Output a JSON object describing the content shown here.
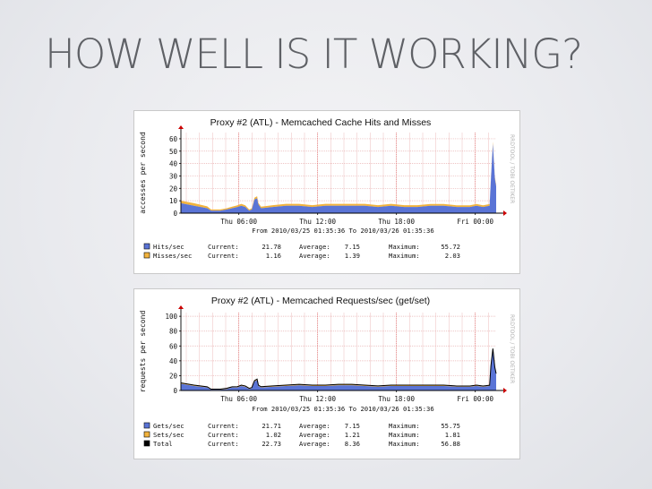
{
  "slide": {
    "title": "HOW WELL IS IT WORKING?"
  },
  "panels": [
    {
      "watermark": "RRDTOOL / TOBI OETIKER",
      "legend": [
        {
          "label": "Hits/sec",
          "color": "#5a74d6",
          "current": "21.78",
          "average": "7.15",
          "maximum": "55.72"
        },
        {
          "label": "Misses/sec",
          "color": "#f2b33d",
          "current": "1.16",
          "average": "1.39",
          "maximum": "2.03"
        }
      ],
      "labels": {
        "current": "Current:",
        "average": "Average:",
        "maximum": "Maximum:"
      }
    },
    {
      "watermark": "RRDTOOL / TOBI OETIKER",
      "legend": [
        {
          "label": "Gets/sec",
          "color": "#5a74d6",
          "current": "21.71",
          "average": "7.15",
          "maximum": "55.75"
        },
        {
          "label": "Sets/sec",
          "color": "#f2b33d",
          "current": "1.02",
          "average": "1.21",
          "maximum": "1.81"
        },
        {
          "label": "Total",
          "color": "#000000",
          "current": "22.73",
          "average": "8.36",
          "maximum": "56.88"
        }
      ],
      "labels": {
        "current": "Current:",
        "average": "Average:",
        "maximum": "Maximum:"
      }
    }
  ],
  "chart_data": [
    {
      "type": "area",
      "title": "Proxy #2 (ATL) - Memcached Cache Hits and Misses",
      "ylabel": "accesses per second",
      "subtitle": "From 2010/03/25 01:35:36 To 2010/03/26 01:35:36",
      "ylim": [
        0,
        65
      ],
      "yticks": [
        0,
        10,
        20,
        30,
        40,
        50,
        60
      ],
      "xlim": [
        0,
        24
      ],
      "xticks": [
        {
          "x": 4.41,
          "label": "Thu 06:00"
        },
        {
          "x": 10.41,
          "label": "Thu 12:00"
        },
        {
          "x": 16.41,
          "label": "Thu 18:00"
        },
        {
          "x": 22.41,
          "label": "Fri 00:00"
        }
      ],
      "grid": true,
      "x": [
        0,
        1,
        2,
        2.3,
        3,
        3.5,
        3.9,
        4.3,
        4.6,
        4.9,
        5.2,
        5.4,
        5.6,
        5.8,
        5.9,
        6.1,
        7,
        8,
        9,
        10,
        11,
        12,
        13,
        14,
        15,
        16,
        17,
        18,
        19,
        20,
        21,
        22,
        22.5,
        23,
        23.5,
        23.6,
        23.75,
        23.9,
        24
      ],
      "series": [
        {
          "name": "Hits/sec",
          "values": [
            8,
            6,
            4,
            2,
            2,
            3,
            4,
            5,
            6,
            5,
            2,
            3,
            11,
            12,
            7,
            4,
            5,
            6,
            6,
            5,
            6,
            6,
            6,
            6,
            5,
            6,
            5,
            5,
            6,
            6,
            5,
            5,
            6,
            5,
            6,
            27,
            56,
            28,
            21.78
          ]
        },
        {
          "name": "Misses/sec",
          "values": [
            2,
            2,
            1.5,
            1,
            1,
            1,
            1.2,
            1.3,
            1.5,
            1.3,
            1,
            1,
            1.5,
            1.6,
            1.3,
            1.2,
            1.4,
            1.5,
            1.5,
            1.4,
            1.5,
            1.5,
            1.5,
            1.5,
            1.4,
            1.5,
            1.4,
            1.4,
            1.4,
            1.4,
            1.3,
            1.3,
            1.4,
            1.3,
            1.3,
            1.5,
            1.6,
            1.3,
            1.16
          ]
        }
      ]
    },
    {
      "type": "area",
      "title": "Proxy #2 (ATL) - Memcached Requests/sec (get/set)",
      "ylabel": "requests per second",
      "subtitle": "From 2010/03/25 01:35:36 To 2010/03/26 01:35:36",
      "ylim": [
        0,
        105
      ],
      "yticks": [
        0,
        20,
        40,
        60,
        80,
        100
      ],
      "xlim": [
        0,
        24
      ],
      "xticks": [
        {
          "x": 4.41,
          "label": "Thu 06:00"
        },
        {
          "x": 10.41,
          "label": "Thu 12:00"
        },
        {
          "x": 16.41,
          "label": "Thu 18:00"
        },
        {
          "x": 22.41,
          "label": "Fri 00:00"
        }
      ],
      "grid": true,
      "x": [
        0,
        1,
        2,
        2.3,
        3,
        3.5,
        3.9,
        4.3,
        4.6,
        4.9,
        5.2,
        5.4,
        5.6,
        5.8,
        5.9,
        6.1,
        7,
        8,
        9,
        10,
        11,
        12,
        13,
        14,
        15,
        16,
        17,
        18,
        19,
        20,
        21,
        22,
        22.5,
        23,
        23.5,
        23.6,
        23.75,
        23.9,
        24
      ],
      "series": [
        {
          "name": "Gets/sec",
          "values": [
            9,
            6,
            4,
            1,
            1,
            2,
            4,
            4,
            6,
            5,
            2,
            3,
            12,
            14,
            6,
            4,
            5,
            6,
            7,
            6,
            6,
            7,
            7,
            6,
            5,
            6,
            6,
            6,
            6,
            6,
            5,
            5,
            6,
            5,
            6,
            32,
            55,
            30,
            21.71
          ]
        },
        {
          "name": "Sets/sec",
          "values": [
            1.2,
            1.2,
            1,
            0.8,
            0.8,
            1,
            1,
            1.1,
            1.2,
            1.1,
            0.9,
            1,
            1.3,
            1.4,
            1.2,
            1.1,
            1.2,
            1.3,
            1.3,
            1.2,
            1.3,
            1.3,
            1.3,
            1.3,
            1.2,
            1.3,
            1.2,
            1.2,
            1.2,
            1.2,
            1.1,
            1.1,
            1.2,
            1.1,
            1.1,
            1.3,
            1.5,
            1.2,
            1.02
          ]
        }
      ]
    }
  ]
}
